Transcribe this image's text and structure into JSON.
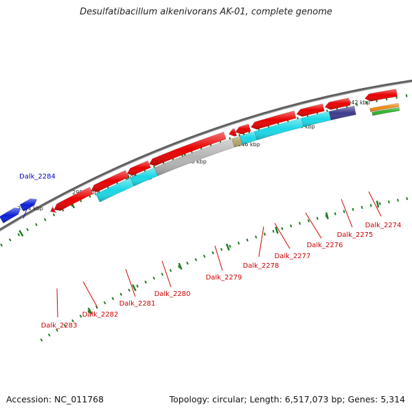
{
  "title": "Desulfatibacillum alkenivorans AK-01, complete genome",
  "footer": {
    "accession": "Accession: NC_011768",
    "summary": "Topology: circular; Length: 6,517,073 bp; Genes: 5,314"
  },
  "colors": {
    "backbone": "#7f7f7f",
    "tick": "#1f7a1f",
    "label_forward": "#0000cc",
    "label_reverse": "#cc0000",
    "gene_red": "#e80000",
    "gene_blue": "#0a1fd8",
    "gene_cyan": "#19d8e6",
    "gene_gray": "#b4b4b4",
    "gene_navy": "#3d3a8c",
    "gene_tan": "#b3a56a",
    "gene_orange": "#ee8a10",
    "gene_green": "#2fb42f"
  },
  "kbp_ticks": [
    {
      "label": "2942 kbp"
    },
    {
      "label": "2944 kbp"
    },
    {
      "label": "2946 kbp"
    },
    {
      "label": "2948 kbp"
    },
    {
      "label": "2950 kbp"
    },
    {
      "label": "2952 kbp"
    },
    {
      "label": "2954 kbp"
    }
  ],
  "gene_labels": [
    {
      "text": "Dalk_2284",
      "strand": "forward"
    },
    {
      "text": "Dalk_2283",
      "strand": "reverse"
    },
    {
      "text": "Dalk_2282",
      "strand": "reverse"
    },
    {
      "text": "Dalk_2281",
      "strand": "reverse"
    },
    {
      "text": "Dalk_2280",
      "strand": "reverse"
    },
    {
      "text": "Dalk_2279",
      "strand": "reverse"
    },
    {
      "text": "Dalk_2278",
      "strand": "reverse"
    },
    {
      "text": "Dalk_2277",
      "strand": "reverse"
    },
    {
      "text": "Dalk_2276",
      "strand": "reverse"
    },
    {
      "text": "Dalk_2275",
      "strand": "reverse"
    },
    {
      "text": "Dalk_2274",
      "strand": "reverse"
    }
  ]
}
